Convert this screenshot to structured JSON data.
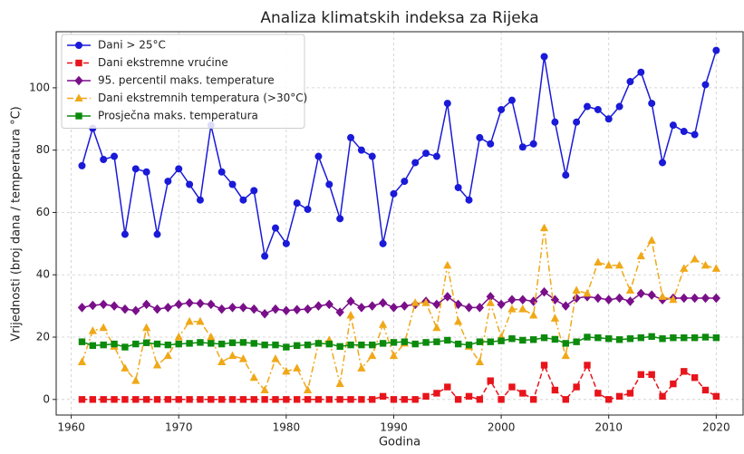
{
  "chart_data": {
    "type": "line",
    "title": "Analiza klimatskih indeksa za Rijeka",
    "x_label": "Godina",
    "y_label": "Vrijednosti (broj dana / temperatura °C)",
    "x": [
      1961,
      1962,
      1963,
      1964,
      1965,
      1966,
      1967,
      1968,
      1969,
      1970,
      1971,
      1972,
      1973,
      1974,
      1975,
      1976,
      1977,
      1978,
      1979,
      1980,
      1981,
      1982,
      1983,
      1984,
      1985,
      1986,
      1987,
      1988,
      1989,
      1990,
      1991,
      1992,
      1993,
      1994,
      1995,
      1996,
      1997,
      1998,
      1999,
      2000,
      2001,
      2002,
      2003,
      2004,
      2005,
      2006,
      2007,
      2008,
      2009,
      2010,
      2011,
      2012,
      2013,
      2014,
      2015,
      2016,
      2017,
      2018,
      2019,
      2020
    ],
    "xlim": [
      1958.6,
      2022.5
    ],
    "xticks": [
      1960,
      1970,
      1980,
      1990,
      2000,
      2010,
      2020
    ],
    "ylim": [
      -5,
      118
    ],
    "yticks": [
      0,
      20,
      40,
      60,
      80,
      100
    ],
    "grid": true,
    "legend": "upper-left",
    "series": [
      {
        "name": "Dani > 25°C",
        "color": "#1a1ad8",
        "marker": "circle",
        "linestyle": "solid",
        "values": [
          75,
          87,
          77,
          78,
          53,
          74,
          73,
          53,
          70,
          74,
          69,
          64,
          88,
          73,
          69,
          64,
          67,
          46,
          55,
          50,
          63,
          61,
          78,
          69,
          58,
          84,
          80,
          78,
          50,
          66,
          70,
          76,
          79,
          78,
          95,
          68,
          64,
          84,
          82,
          93,
          96,
          81,
          82,
          110,
          89,
          72,
          89,
          94,
          93,
          90,
          94,
          102,
          105,
          95,
          76,
          88,
          86,
          85,
          101,
          112
        ]
      },
      {
        "name": "Dani ekstremne vrućine",
        "color": "#e8141b",
        "marker": "square",
        "linestyle": "dashed",
        "values": [
          0,
          0,
          0,
          0,
          0,
          0,
          0,
          0,
          0,
          0,
          0,
          0,
          0,
          0,
          0,
          0,
          0,
          0,
          0,
          0,
          0,
          0,
          0,
          0,
          0,
          0,
          0,
          0,
          1,
          0,
          0,
          0,
          1,
          2,
          4,
          0,
          1,
          0,
          6,
          0,
          4,
          2,
          0,
          11,
          3,
          0,
          4,
          11,
          2,
          0,
          1,
          2,
          8,
          8,
          1,
          5,
          9,
          7,
          3,
          1
        ]
      },
      {
        "name": "95. percentil maks. temperature",
        "color": "#7a0f8a",
        "marker": "diamond",
        "linestyle": "solid",
        "values": [
          29.5,
          30.2,
          30.5,
          30,
          29,
          28.5,
          30.5,
          29,
          29.5,
          30.5,
          31,
          30.8,
          30.5,
          29,
          29.5,
          29.5,
          29,
          27.5,
          29,
          28.5,
          28.8,
          29,
          30,
          30.5,
          28,
          31.5,
          29.5,
          30,
          31,
          29.5,
          30,
          30.5,
          31.5,
          30.5,
          33,
          30.5,
          29.5,
          29.5,
          33,
          30.5,
          32,
          32,
          31.5,
          34.5,
          32,
          30,
          32.5,
          33,
          32.5,
          32,
          32.5,
          31.5,
          34,
          33.5,
          32,
          32.5,
          32.5,
          32.5,
          32.5,
          32.5
        ]
      },
      {
        "name": "Dani ekstremnih temperatura (>30°C)",
        "color": "#f0a818",
        "marker": "triangle",
        "linestyle": "dashdot",
        "values": [
          12,
          22,
          23,
          17,
          10,
          6,
          23,
          11,
          14,
          20,
          25,
          25,
          20,
          12,
          14,
          13,
          7,
          3,
          13,
          9,
          10,
          3,
          18,
          19,
          5,
          27,
          10,
          14,
          24,
          14,
          18,
          31,
          31,
          23,
          43,
          25,
          17,
          12,
          31,
          20,
          29,
          29,
          27,
          55,
          26,
          14,
          35,
          34,
          44,
          43,
          43,
          35,
          46,
          51,
          33,
          32,
          42,
          45,
          43,
          42
        ]
      },
      {
        "name": "Prosječna maks. temperatura",
        "color": "#0c8a0c",
        "marker": "square",
        "linestyle": "solid",
        "values": [
          18.5,
          17.3,
          17.5,
          17.8,
          16.8,
          17.8,
          18.2,
          17.8,
          17.5,
          17.8,
          18,
          18.3,
          18,
          17.8,
          18.2,
          18.3,
          18,
          17.5,
          17.5,
          16.8,
          17.3,
          17.5,
          18,
          17.8,
          17,
          17.5,
          17.5,
          17.5,
          18,
          18.3,
          18.5,
          17.8,
          18.3,
          18.5,
          19,
          17.8,
          17.5,
          18.5,
          18.5,
          18.8,
          19.5,
          19,
          19.2,
          19.8,
          19.3,
          18,
          18.5,
          20,
          19.8,
          19.5,
          19.2,
          19.5,
          19.8,
          20.2,
          19.5,
          19.8,
          19.8,
          19.8,
          20,
          19.8
        ]
      }
    ]
  }
}
